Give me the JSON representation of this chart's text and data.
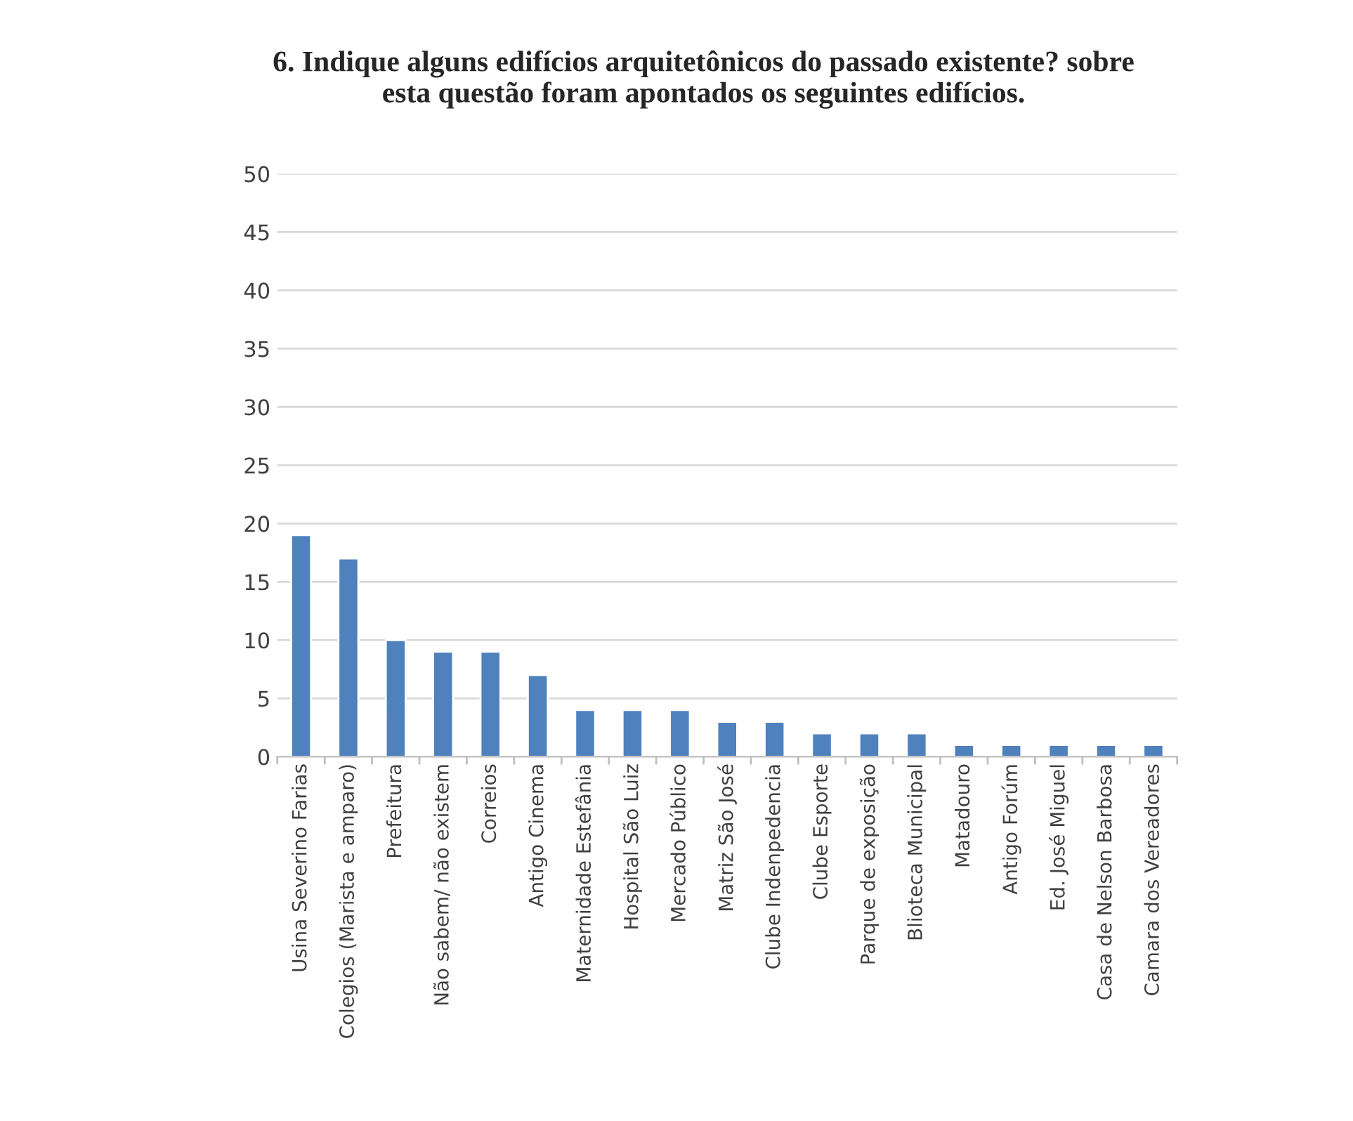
{
  "chart_data": {
    "type": "bar",
    "title": "6. Indique alguns edifícios arquitetônicos do passado existente? sobre\nesta questão foram apontados os seguintes edifícios.",
    "categories": [
      "Usina Severino Farias",
      "Colegios (Marista e amparo)",
      "Prefeitura",
      "Não sabem/ não existem",
      "Correios",
      "Antigo Cinema",
      "Maternidade Estefânia",
      "Hospital São Luiz",
      "Mercado Público",
      "Matriz São José",
      "Clube Indenpedencia",
      "Clube Esporte",
      "Parque de exposição",
      "Blioteca Municipal",
      "Matadouro",
      "Antigo Forúm",
      "Ed. José Miguel",
      "Casa de Nelson Barbosa",
      "Camara dos Vereadores"
    ],
    "values": [
      19,
      17,
      10,
      9,
      9,
      7,
      4,
      4,
      4,
      3,
      3,
      2,
      2,
      2,
      1,
      1,
      1,
      1,
      1
    ],
    "color": "#4f81bd",
    "ylim": [
      0,
      50
    ],
    "yticks": [
      0,
      5,
      10,
      15,
      20,
      25,
      30,
      35,
      40,
      45,
      50
    ],
    "grid": "y"
  }
}
